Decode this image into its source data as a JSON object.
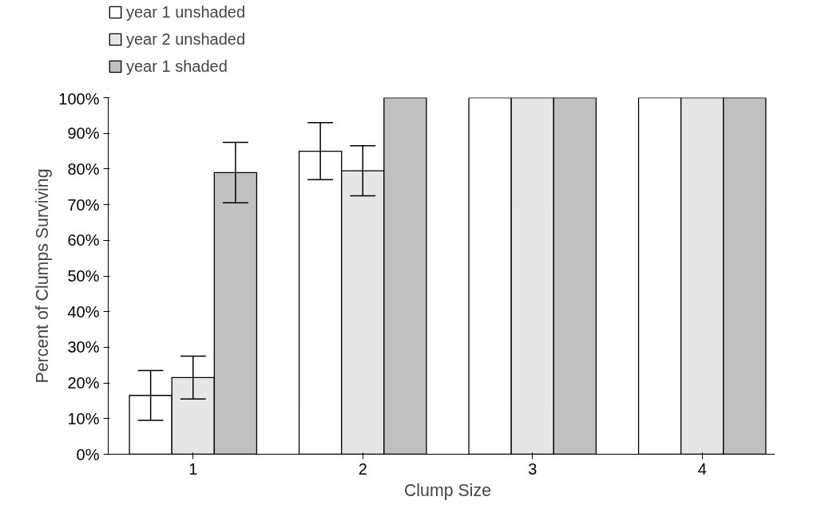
{
  "chart_data": {
    "type": "bar",
    "xlabel": "Clump Size",
    "ylabel": "Percent of Clumps Surviving",
    "categories": [
      "1",
      "2",
      "3",
      "4"
    ],
    "ylim": [
      0,
      100
    ],
    "yticks": [
      {
        "value": 0,
        "label": "0%"
      },
      {
        "value": 10,
        "label": "10%"
      },
      {
        "value": 20,
        "label": "20%"
      },
      {
        "value": 30,
        "label": "30%"
      },
      {
        "value": 40,
        "label": "40%"
      },
      {
        "value": 50,
        "label": "50%"
      },
      {
        "value": 60,
        "label": "60%"
      },
      {
        "value": 70,
        "label": "70%"
      },
      {
        "value": 80,
        "label": "80%"
      },
      {
        "value": 90,
        "label": "90%"
      },
      {
        "value": 100,
        "label": "100%"
      }
    ],
    "grid": false,
    "legend": "top left",
    "series": [
      {
        "name": "year 1 unshaded",
        "color": "#ffffff",
        "values": [
          16.5,
          85,
          100,
          100
        ],
        "errors": [
          7,
          8,
          null,
          null
        ]
      },
      {
        "name": "year 2 unshaded",
        "color": "#e6e6e6",
        "values": [
          21.5,
          79.5,
          100,
          100
        ],
        "errors": [
          6,
          7,
          null,
          null
        ]
      },
      {
        "name": "year 1 shaded",
        "color": "#c0c0c0",
        "values": [
          79,
          100,
          100,
          100
        ],
        "errors": [
          8.5,
          null,
          null,
          null
        ]
      }
    ]
  }
}
